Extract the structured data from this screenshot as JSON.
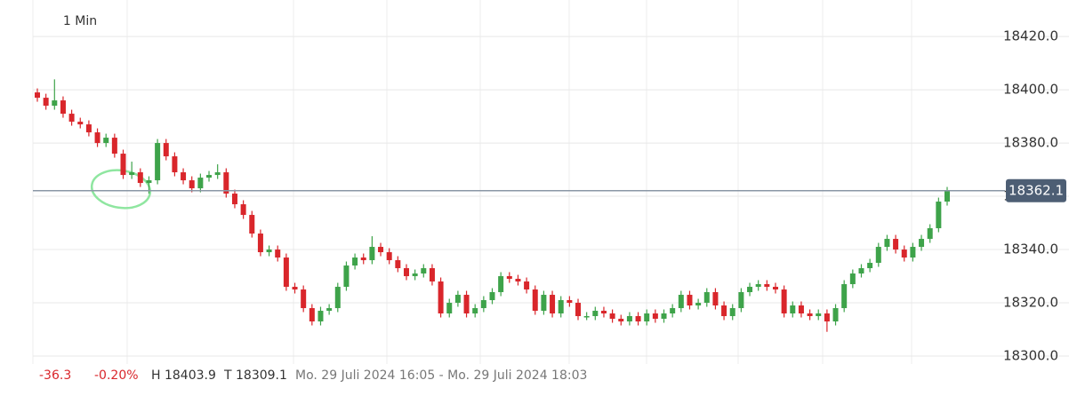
{
  "chart_data": {
    "type": "candlestick",
    "interval_label": "1 Min",
    "ylim": [
      18285,
      18433.7
    ],
    "yticks": [
      {
        "value": 18300,
        "label": "18300.0"
      },
      {
        "value": 18320,
        "label": "18320.0"
      },
      {
        "value": 18340,
        "label": "18340.0"
      },
      {
        "value": 18360,
        "label": "18360.0"
      },
      {
        "value": 18380,
        "label": "18380.0"
      },
      {
        "value": 18400,
        "label": "18400.0"
      },
      {
        "value": 18420,
        "label": "18420.0"
      }
    ],
    "grid": true,
    "last_price": 18362.1,
    "up_color": "#3ea34a",
    "down_color": "#d9262b",
    "change": -36.3,
    "change_pct": "-0.20%",
    "high_label": "H 18403.9",
    "low_label": "T 18309.1",
    "range_label": "Mo. 29 Juli 2024 16:05 - Mo. 29 Juli 2024 18:03",
    "open": [
      18399,
      18397,
      18394,
      18396,
      18391,
      18388,
      18387,
      18384,
      18380,
      18382,
      18376,
      18368,
      18369,
      18365,
      18366,
      18380,
      18375,
      18369,
      18366,
      18363,
      18367,
      18368,
      18369,
      18361,
      18357,
      18353,
      18346,
      18339,
      18340,
      18337,
      18326,
      18325,
      18318,
      18313,
      18317,
      18318,
      18326,
      18334,
      18337,
      18336,
      18341,
      18339,
      18336,
      18333,
      18330,
      18331,
      18333,
      18328,
      18316,
      18320,
      18323,
      18316,
      18318,
      18321,
      18324,
      18330,
      18329,
      18328,
      18325,
      18317,
      18323,
      18316,
      18321,
      18320,
      18315,
      18315,
      18317,
      18316,
      18314,
      18313,
      18315,
      18313,
      18316,
      18314,
      18316,
      18318,
      18323,
      18319,
      18320,
      18324,
      18319,
      18315,
      18318,
      18324,
      18326,
      18327,
      18326,
      18325,
      18316,
      18319,
      18316,
      18315,
      18316,
      18313,
      18318,
      18327,
      18331,
      18333,
      18335,
      18341,
      18344,
      18340,
      18337,
      18341,
      18344,
      18348,
      18358
    ],
    "high": [
      18400.5,
      18398.5,
      18403.9,
      18397.5,
      18392.5,
      18389.5,
      18388.5,
      18385.5,
      18383.5,
      18383.5,
      18377.5,
      18373,
      18370.5,
      18367.5,
      18381.5,
      18381.5,
      18376.5,
      18370.5,
      18367.5,
      18368.5,
      18369.5,
      18372,
      18370.5,
      18362.5,
      18358.5,
      18354.5,
      18347.5,
      18341.5,
      18341.5,
      18338.5,
      18327.5,
      18326.5,
      18319.5,
      18318.5,
      18319.5,
      18327.5,
      18335.5,
      18338.5,
      18338.5,
      18345,
      18342.5,
      18340.5,
      18337.5,
      18334.5,
      18332.5,
      18334.5,
      18334.5,
      18329.5,
      18321.5,
      18324.5,
      18324.5,
      18319.5,
      18322.5,
      18325.5,
      18331.5,
      18331.5,
      18330.5,
      18329.5,
      18326.5,
      18324.5,
      18324.5,
      18322.5,
      18322.5,
      18321.5,
      18316.5,
      18318.5,
      18318.5,
      18317.5,
      18315.5,
      18316.5,
      18316.5,
      18317.5,
      18317.5,
      18317.5,
      18319.5,
      18324.5,
      18324.5,
      18321.5,
      18325.5,
      18325.5,
      18320.5,
      18319.5,
      18325.5,
      18327.5,
      18328.5,
      18328.5,
      18327.5,
      18326.5,
      18320.5,
      18320.5,
      18317.5,
      18317.5,
      18317.5,
      18319.5,
      18328.5,
      18332.5,
      18334.5,
      18336.5,
      18342.5,
      18345.5,
      18345.5,
      18341.5,
      18342.5,
      18345.5,
      18349.5,
      18359.5,
      18363.5
    ],
    "low": [
      18395.5,
      18392.5,
      18392.5,
      18389.5,
      18386.5,
      18385.5,
      18382.5,
      18378.5,
      18378.5,
      18374.5,
      18366.5,
      18366.5,
      18363.5,
      18361,
      18364.5,
      18373.5,
      18367.5,
      18364.5,
      18361.5,
      18361.5,
      18365.5,
      18366.5,
      18359.5,
      18355.5,
      18351.5,
      18344.5,
      18337.5,
      18337.5,
      18335.5,
      18324.5,
      18323.5,
      18316.5,
      18311.5,
      18311.5,
      18315.5,
      18316.5,
      18324.5,
      18332.5,
      18334.5,
      18334.5,
      18337.5,
      18334.5,
      18331.5,
      18328.5,
      18328.5,
      18329.5,
      18326.5,
      18314.5,
      18314.5,
      18318.5,
      18314.5,
      18314.5,
      18316.5,
      18319.5,
      18322.5,
      18327.5,
      18326.5,
      18323.5,
      18315.5,
      18315.5,
      18314.5,
      18314.5,
      18318.5,
      18313.5,
      18313.5,
      18313.5,
      18314.5,
      18312.5,
      18311.5,
      18311.5,
      18311.5,
      18311.5,
      18312.5,
      18312.5,
      18314.5,
      18316.5,
      18317.5,
      18317.5,
      18318.5,
      18317.5,
      18313.5,
      18313.5,
      18316.5,
      18322.5,
      18324.5,
      18324.5,
      18323.5,
      18314.5,
      18314.5,
      18314.5,
      18313.5,
      18313.5,
      18309.1,
      18311.5,
      18316.5,
      18325.5,
      18329.5,
      18331.5,
      18333.5,
      18339.5,
      18338.5,
      18335.5,
      18335.5,
      18339.5,
      18342.5,
      18346.5,
      18356.5
    ],
    "close": [
      18397,
      18394,
      18396,
      18391,
      18388,
      18387,
      18384,
      18380,
      18382,
      18376,
      18368,
      18369,
      18365,
      18366,
      18380,
      18375,
      18369,
      18366,
      18363,
      18367,
      18368,
      18369,
      18361,
      18357,
      18353,
      18346,
      18339,
      18340,
      18337,
      18326,
      18325,
      18318,
      18313,
      18317,
      18318,
      18326,
      18334,
      18337,
      18336,
      18341,
      18339,
      18336,
      18333,
      18330,
      18331,
      18333,
      18328,
      18316,
      18320,
      18323,
      18316,
      18318,
      18321,
      18324,
      18330,
      18329,
      18328,
      18325,
      18317,
      18323,
      18316,
      18321,
      18320,
      18315,
      18315,
      18317,
      18316,
      18314,
      18313,
      18315,
      18313,
      18316,
      18314,
      18316,
      18318,
      18323,
      18319,
      18320,
      18324,
      18319,
      18315,
      18318,
      18324,
      18326,
      18327,
      18326,
      18325,
      18316,
      18319,
      18316,
      18315,
      18316,
      18313,
      18318,
      18327,
      18331,
      18333,
      18335,
      18341,
      18344,
      18340,
      18337,
      18341,
      18344,
      18348,
      18358,
      18362.1
    ]
  }
}
